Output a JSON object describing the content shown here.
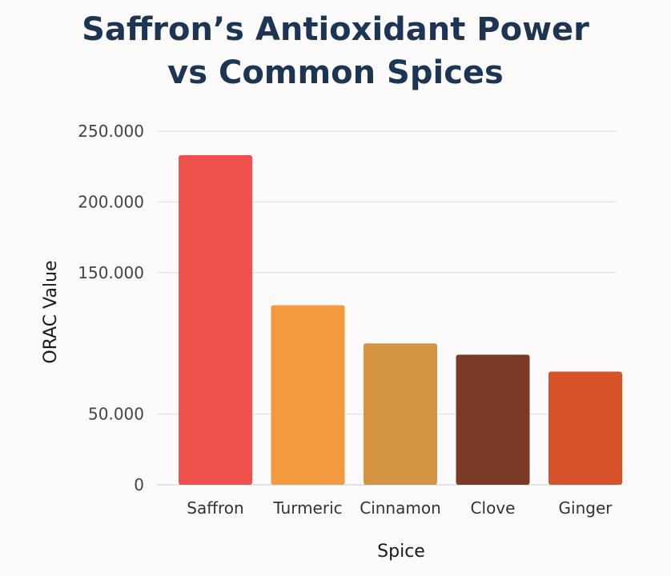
{
  "chart_data": {
    "type": "bar",
    "title_lines": [
      "Saffron’s Antioxidant Power",
      "vs Common Spices"
    ],
    "xlabel": "Spice",
    "ylabel": "ORAC Value",
    "categories": [
      "Saffron",
      "Turmeric",
      "Cinnamon",
      "Clove",
      "Ginger"
    ],
    "values": [
      233000,
      127000,
      100000,
      92000,
      80000
    ],
    "colors": [
      "#ee504c",
      "#f39a3f",
      "#d59441",
      "#7a3a26",
      "#d6532a"
    ],
    "y_ticks": [
      {
        "value": 0,
        "label": "0"
      },
      {
        "value": 50000,
        "label": "50.000"
      },
      {
        "value": 150000,
        "label": "150.000"
      },
      {
        "value": 200000,
        "label": "200.000"
      },
      {
        "value": 250000,
        "label": "250.000"
      }
    ],
    "ylim": [
      0,
      250000
    ],
    "grid": true,
    "legend": "none"
  }
}
